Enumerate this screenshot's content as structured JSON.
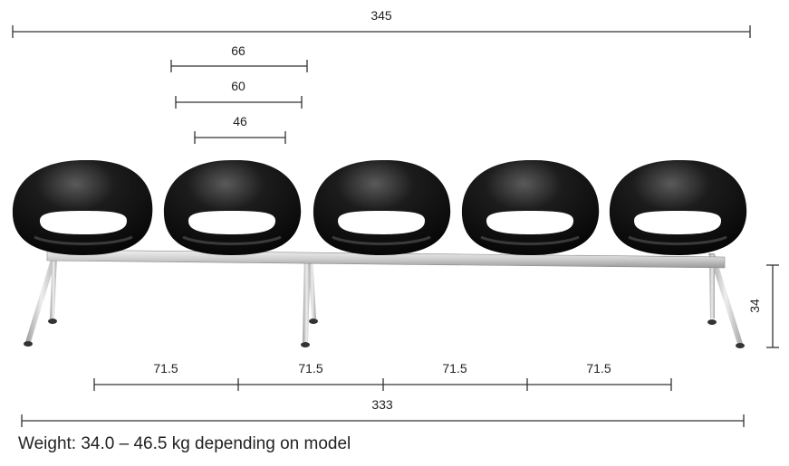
{
  "dimensions": {
    "total_width": "345",
    "seat_outer_width": "66",
    "seat_mid_width": "60",
    "seat_inner_width": "46",
    "seat_height": "34",
    "spacing": [
      "71.5",
      "71.5",
      "71.5",
      "71.5"
    ],
    "beam_length": "333"
  },
  "caption": "Weight: 34.0 – 46.5 kg depending on model",
  "colors": {
    "shell": "#0d0d0d",
    "frame": "#d9d9d9",
    "line": "#333333"
  }
}
